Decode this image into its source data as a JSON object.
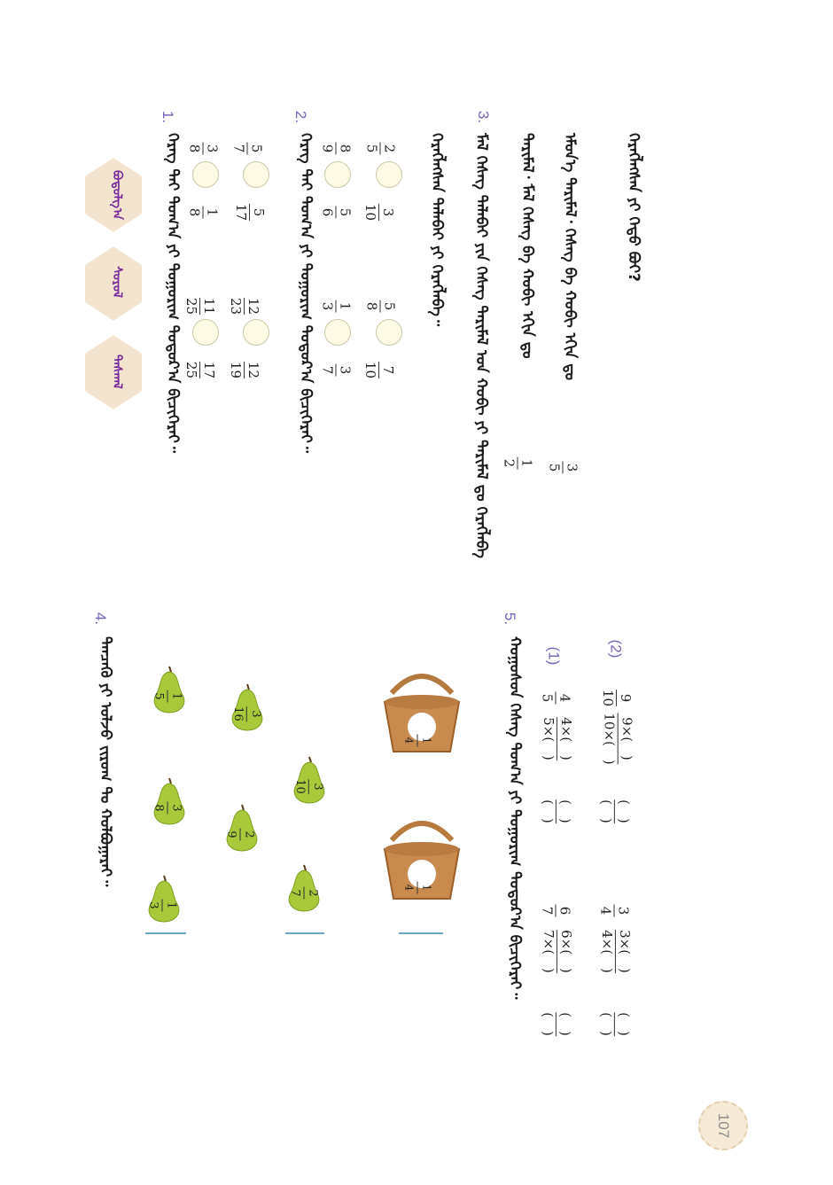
{
  "page_number": "107",
  "hex_buttons": [
    {
      "label": "ᠪᠣᠳᠣᠯᠭ᠎ᠠ"
    },
    {
      "label": "ᠰᠤᠷᠤᠯ"
    },
    {
      "label": "ᠳᠠᠰᠭᠠᠯ"
    }
  ],
  "q1": {
    "number": "1.",
    "text": "ᠬᠡᠷᠡᠭ ᠲᠡᠢ ᠲᠣᠭ᠎ᠠ ᠶᠢ ᠲᠣᠭᠣᠷᠢᠭ ᠳᠣᠲᠣᠷ᠎ᠠ ᠪᠢᠴᠢᠭᠡᠷᠡᠢ᠃",
    "rows": [
      {
        "a_num": "3",
        "a_den": "8",
        "b_num": "1",
        "b_den": "8",
        "c_num": "11",
        "c_den": "25",
        "d_num": "17",
        "d_den": "25"
      },
      {
        "a_num": "5",
        "a_den": "7",
        "b_num": "5",
        "b_den": "17",
        "c_num": "12",
        "c_den": "23",
        "d_num": "12",
        "d_den": "19"
      }
    ]
  },
  "q2": {
    "number": "2.",
    "text": "ᠬᠡᠷᠡᠭ ᠲᠡᠢ ᠲᠣᠭ᠎ᠠ ᠶᠢ ᠲᠣᠭᠣᠷᠢᠭ ᠳᠣᠲᠣᠷ᠎ᠠ ᠪᠢᠴᠢᠭᠡᠷᠡᠢ᠃",
    "rows": [
      {
        "a_num": "8",
        "a_den": "9",
        "b_num": "5",
        "b_den": "6",
        "c_num": "1",
        "c_den": "3",
        "d_num": "3",
        "d_den": "7"
      },
      {
        "a_num": "2",
        "a_den": "5",
        "b_num": "3",
        "b_den": "10",
        "c_num": "5",
        "c_den": "8",
        "d_num": "7",
        "d_den": "10"
      }
    ]
  },
  "q3": {
    "number": "3.",
    "lines": [
      "ᠮᠠᠯ ᠬᠡᠰᠡᠭ ᠲᠠᠯᠠᠪᠠᠢ ᠶᠢᠨ ᠬᠡᠰᠡᠭ ᠲᠠᠷᠢᠮᠠᠯ ᠤᠨ ᠬᠤᠪᠢ ᠶᠢ ᠲᠠᠷᠢᠮᠠᠯ ᠳᠤ ᠬᠡᠷᠡᠭᠯᠡᠪᠡ",
      "ᠲᠠᠷᠢᠮᠠᠯ᠂ ᠮᠠᠯ ᠬᠡᠰᠡᠭ ᠪᠠ ᠬᠤᠪᠢ ᠡᠬᠢᠨ ᠳᠤ",
      "ᠡᠮᠦᠨ᠎ᠡ ᠲᠠᠷᠢᠮᠠᠯ᠂ ᠬᠡᠰᠡᠭ ᠪᠠ ᠬᠤᠪᠢ ᠡᠬᠢᠨ ᠳᠤ",
      "ᠬᠡᠷᠡᠭᠯᠡᠭᠰᠡᠨ ᠲᠠᠯᠠᠪᠠᠢ ᠶᠢ ᠬᠡᠷᠡᠭᠯᠡᠪᠡ᠃",
      "ᠬᠡᠷᠡᠭᠯᠡᠭᠰᠡᠨ ᠶᠢ ᠬᠡᠳᠦ ᠪᠣᠢ?"
    ],
    "frac1_num": "1",
    "frac1_den": "2",
    "frac2_num": "3",
    "frac2_den": "5"
  },
  "q4": {
    "number": "4.",
    "text": "ᠲᠡᠨᠴᠡᠭᠦ ᠶᠢ ᠣᠯᠵᠤ ᠵᠢᠷᠤᠭ ᠲᠤ ᠬᠣᠯᠪᠤᠭᠠᠷᠠᠢ᠃",
    "baskets": [
      {
        "num": "1",
        "den": "4",
        "label": "ᠲᠡᠢ"
      },
      {
        "num": "1",
        "den": "4",
        "label": "ᠳᠤ"
      }
    ],
    "pears": [
      {
        "num": "3",
        "den": "10"
      },
      {
        "num": "2",
        "den": "7"
      },
      {
        "num": "3",
        "den": "16"
      },
      {
        "num": "2",
        "den": "9"
      },
      {
        "num": "1",
        "den": "5"
      },
      {
        "num": "3",
        "den": "8"
      },
      {
        "num": "1",
        "den": "3"
      }
    ]
  },
  "q5": {
    "number": "5.",
    "text": "ᠬᠣᠭᠣᠰᠣᠨ ᠬᠡᠰᠡᠭ ᠲᠣᠭ᠎ᠠ ᠶᠢ ᠲᠣᠭᠣᠷᠢᠭ ᠳᠣᠲᠣᠷ᠎ᠠ ᠪᠢᠴᠢᠭᠡᠷᠡᠢ᠃",
    "sub1": "(1)",
    "sub2": "(2)",
    "eqs": [
      {
        "num": "4",
        "den": "5",
        "num2": "4×(　)",
        "den2": "5×(　)",
        "num3": "(　)",
        "den3": "(　)"
      },
      {
        "num": "6",
        "den": "7",
        "num2": "6×(　)",
        "den2": "7×(　)",
        "num3": "(　)",
        "den3": "(　)"
      },
      {
        "num": "9",
        "den": "10",
        "num2": "9×(　)",
        "den2": "10×(　)",
        "num3": "(　)",
        "den3": "(　)"
      },
      {
        "num": "3",
        "den": "4",
        "num2": "3×(　)",
        "den2": "4×(　)",
        "num3": "(　)",
        "den3": "(　)"
      }
    ]
  }
}
